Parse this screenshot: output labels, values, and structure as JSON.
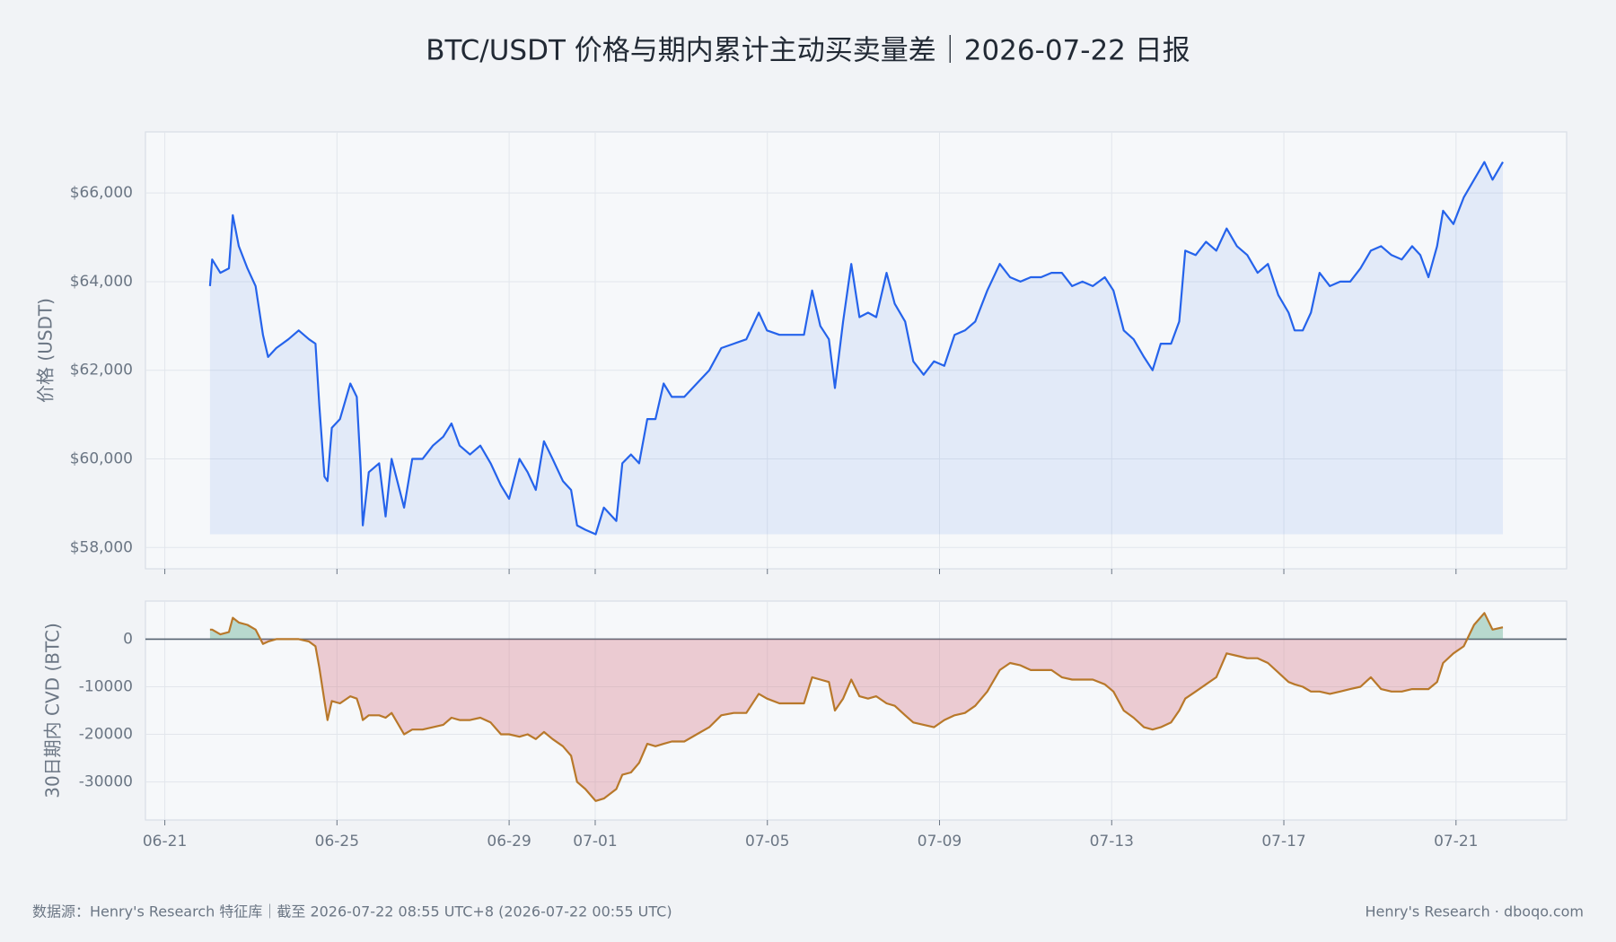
{
  "title": "BTC/USDT 价格与期内累计主动买卖量差｜2026-07-22 日报",
  "source": "数据源：Henry's Research 特征库｜截至 2026-07-22 08:55 UTC+8 (2026-07-22 00:55 UTC)",
  "credit": "Henry's Research · dboqo.com",
  "chart_data": [
    {
      "type": "area-line",
      "ylabel": "价格 (USDT)",
      "ylim": [
        57520,
        67380
      ],
      "yticks": [
        {
          "value": 58000,
          "label": "$58,000"
        },
        {
          "value": 60000,
          "label": "$60,000"
        },
        {
          "value": 62000,
          "label": "$62,000"
        },
        {
          "value": 64000,
          "label": "$64,000"
        },
        {
          "value": 66000,
          "label": "$66,000"
        }
      ],
      "grid": true,
      "x": [
        1.05,
        1.1,
        1.29,
        1.49,
        1.58,
        1.72,
        1.92,
        2.11,
        2.28,
        2.4,
        2.59,
        2.87,
        3.11,
        3.35,
        3.5,
        3.59,
        3.71,
        3.78,
        3.88,
        4.07,
        4.31,
        4.46,
        4.55,
        4.6,
        4.74,
        4.98,
        5.13,
        5.27,
        5.56,
        5.75,
        5.99,
        6.23,
        6.47,
        6.66,
        6.85,
        7.09,
        7.33,
        7.57,
        7.81,
        8.0,
        8.24,
        8.43,
        8.62,
        8.81,
        9.01,
        9.25,
        9.44,
        9.58,
        9.77,
        10.01,
        10.2,
        10.49,
        10.63,
        10.83,
        11.02,
        11.21,
        11.4,
        11.59,
        11.78,
        12.07,
        12.36,
        12.65,
        12.93,
        13.22,
        13.51,
        13.8,
        13.99,
        14.28,
        14.56,
        14.85,
        15.04,
        15.23,
        15.43,
        15.57,
        15.76,
        15.95,
        16.14,
        16.34,
        16.53,
        16.77,
        16.96,
        17.2,
        17.39,
        17.63,
        17.87,
        18.11,
        18.35,
        18.59,
        18.83,
        19.11,
        19.4,
        19.64,
        19.88,
        20.12,
        20.36,
        20.6,
        20.84,
        21.08,
        21.32,
        21.56,
        21.84,
        22.04,
        22.28,
        22.51,
        22.75,
        22.95,
        23.14,
        23.38,
        23.57,
        23.71,
        23.95,
        24.19,
        24.43,
        24.67,
        24.91,
        25.15,
        25.39,
        25.63,
        25.87,
        26.11,
        26.25,
        26.44,
        26.63,
        26.83,
        27.07,
        27.31,
        27.54,
        27.78,
        28.02,
        28.26,
        28.5,
        28.74,
        28.98,
        29.17,
        29.36,
        29.56,
        29.7,
        29.94,
        30.18,
        30.42,
        30.66,
        30.85,
        31.09
      ],
      "series": [
        {
          "color": "#2563eb",
          "fill_color": "rgba(37,99,235,0.09)",
          "values": [
            63900,
            64500,
            64200,
            64300,
            65500,
            64800,
            64300,
            63900,
            62800,
            62300,
            62500,
            62700,
            62900,
            62700,
            62600,
            61200,
            59600,
            59500,
            60700,
            60900,
            61700,
            61400,
            59800,
            58500,
            59700,
            59900,
            58700,
            60000,
            58900,
            60000,
            60000,
            60300,
            60500,
            60800,
            60300,
            60100,
            60300,
            59900,
            59400,
            59100,
            60000,
            59700,
            59300,
            60400,
            60000,
            59500,
            59300,
            58500,
            58400,
            58300,
            58900,
            58600,
            59900,
            60100,
            59900,
            60900,
            60900,
            61700,
            61400,
            61400,
            61700,
            62000,
            62500,
            62600,
            62700,
            63300,
            62900,
            62800,
            62800,
            62800,
            63800,
            63000,
            62700,
            61600,
            63100,
            64400,
            63200,
            63300,
            63200,
            64200,
            63500,
            63100,
            62200,
            61900,
            62200,
            62100,
            62800,
            62900,
            63100,
            63800,
            64400,
            64100,
            64000,
            64100,
            64100,
            64200,
            64200,
            63900,
            64000,
            63900,
            64100,
            63800,
            62900,
            62700,
            62300,
            62000,
            62600,
            62600,
            63100,
            64700,
            64600,
            64900,
            64700,
            65200,
            64800,
            64600,
            64200,
            64400,
            63700,
            63300,
            62900,
            62900,
            63300,
            64200,
            63900,
            64000,
            64000,
            64300,
            64700,
            64800,
            64600,
            64500,
            64800,
            64600,
            64100,
            64800,
            65600,
            65300,
            65900,
            66300,
            66700,
            66300,
            66700
          ]
        }
      ]
    },
    {
      "type": "signed-area-line",
      "ylabel": "30日期内 CVD (BTC)",
      "ylim": [
        -38000,
        8000
      ],
      "yticks": [
        0,
        -10000,
        -20000,
        -30000
      ],
      "grid": true,
      "xlim": [
        -0.45,
        32.57
      ],
      "xticks": [
        {
          "value": 0,
          "label": "06-21"
        },
        {
          "value": 4,
          "label": "06-25"
        },
        {
          "value": 8,
          "label": "06-29"
        },
        {
          "value": 10,
          "label": "07-01"
        },
        {
          "value": 14,
          "label": "07-05"
        },
        {
          "value": 18,
          "label": "07-09"
        },
        {
          "value": 22,
          "label": "07-13"
        },
        {
          "value": 26,
          "label": "07-17"
        },
        {
          "value": 30,
          "label": "07-21"
        }
      ],
      "x": [
        1.05,
        1.1,
        1.29,
        1.49,
        1.58,
        1.72,
        1.92,
        2.11,
        2.28,
        2.4,
        2.59,
        2.87,
        3.11,
        3.35,
        3.5,
        3.59,
        3.71,
        3.78,
        3.88,
        4.07,
        4.31,
        4.46,
        4.55,
        4.6,
        4.74,
        4.98,
        5.13,
        5.27,
        5.56,
        5.75,
        5.99,
        6.23,
        6.47,
        6.66,
        6.85,
        7.09,
        7.33,
        7.57,
        7.81,
        8.0,
        8.24,
        8.43,
        8.62,
        8.81,
        9.01,
        9.25,
        9.44,
        9.58,
        9.77,
        10.01,
        10.2,
        10.49,
        10.63,
        10.83,
        11.02,
        11.21,
        11.4,
        11.59,
        11.78,
        12.07,
        12.36,
        12.65,
        12.93,
        13.22,
        13.51,
        13.8,
        13.99,
        14.28,
        14.56,
        14.85,
        15.04,
        15.23,
        15.43,
        15.57,
        15.76,
        15.95,
        16.14,
        16.34,
        16.53,
        16.77,
        16.96,
        17.2,
        17.39,
        17.63,
        17.87,
        18.11,
        18.35,
        18.59,
        18.83,
        19.11,
        19.4,
        19.64,
        19.88,
        20.12,
        20.36,
        20.6,
        20.84,
        21.08,
        21.32,
        21.56,
        21.84,
        22.04,
        22.28,
        22.51,
        22.75,
        22.95,
        23.14,
        23.38,
        23.57,
        23.71,
        23.95,
        24.19,
        24.43,
        24.67,
        24.91,
        25.15,
        25.39,
        25.63,
        25.87,
        26.11,
        26.25,
        26.44,
        26.63,
        26.83,
        27.07,
        27.31,
        27.54,
        27.78,
        28.02,
        28.26,
        28.5,
        28.74,
        28.98,
        29.17,
        29.36,
        29.56,
        29.7,
        29.94,
        30.18,
        30.42,
        30.66,
        30.85,
        31.09
      ],
      "series": [
        {
          "color": "#b8782a",
          "positive_color": "rgba(92,170,140,0.4)",
          "negative_color": "rgba(214,120,135,0.35)",
          "values": [
            2000,
            2000,
            1000,
            1500,
            4500,
            3500,
            3000,
            2000,
            -1000,
            -500,
            0,
            0,
            0,
            -500,
            -1500,
            -6000,
            -13000,
            -17000,
            -13000,
            -13500,
            -12000,
            -12500,
            -15000,
            -17000,
            -16000,
            -16000,
            -16500,
            -15500,
            -20000,
            -19000,
            -19000,
            -18500,
            -18000,
            -16500,
            -17000,
            -17000,
            -16500,
            -17500,
            -20000,
            -20000,
            -20500,
            -20000,
            -21000,
            -19500,
            -21000,
            -22500,
            -24500,
            -30000,
            -31500,
            -34000,
            -33500,
            -31500,
            -28500,
            -28000,
            -26000,
            -22000,
            -22500,
            -22000,
            -21500,
            -21500,
            -20000,
            -18500,
            -16000,
            -15500,
            -15500,
            -11500,
            -12500,
            -13500,
            -13500,
            -13500,
            -8000,
            -8500,
            -9000,
            -15000,
            -12500,
            -8500,
            -12000,
            -12500,
            -12000,
            -13500,
            -14000,
            -16000,
            -17500,
            -18000,
            -18500,
            -17000,
            -16000,
            -15500,
            -14000,
            -11000,
            -6500,
            -5000,
            -5500,
            -6500,
            -6500,
            -6500,
            -8000,
            -8500,
            -8500,
            -8500,
            -9500,
            -11000,
            -15000,
            -16500,
            -18500,
            -19000,
            -18500,
            -17500,
            -15000,
            -12500,
            -11000,
            -9500,
            -8000,
            -3000,
            -3500,
            -4000,
            -4000,
            -5000,
            -7000,
            -9000,
            -9500,
            -10000,
            -11000,
            -11000,
            -11500,
            -11000,
            -10500,
            -10000,
            -8000,
            -10500,
            -11000,
            -11000,
            -10500,
            -10500,
            -10500,
            -9000,
            -5000,
            -3000,
            -1500,
            3000,
            5500,
            2000,
            2500
          ]
        }
      ]
    }
  ]
}
